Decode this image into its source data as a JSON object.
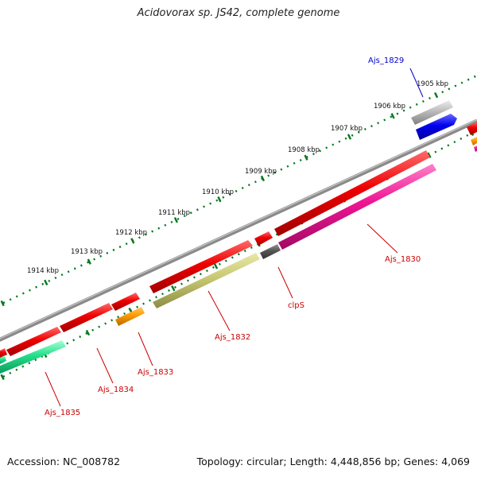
{
  "title": "Acidovorax sp. JS42, complete genome",
  "footer": {
    "accession": "Accession: NC_008782",
    "topology": "Topology: circular; Length: 4,448,856 bp; Genes: 4,069"
  },
  "colors": {
    "forward_gene": "#ee0000",
    "magenta_gene": "#ee1493",
    "olive_gene": "#c8c873",
    "orange_gene": "#ff9900",
    "green_gene": "#22e08a",
    "blue_gene": "#0000ee",
    "gray_gene": "#bbbbbb",
    "dark_gene": "#555555",
    "backbone": "#8a8a8a",
    "ticks": "#00771a",
    "label_red": "#cc0000",
    "label_blue": "#0000cc"
  },
  "ticks": [
    "1905 kbp",
    "1906 kbp",
    "1907 kbp",
    "1908 kbp",
    "1909 kbp",
    "1910 kbp",
    "1911 kbp",
    "1912 kbp",
    "1913 kbp",
    "1914 kbp"
  ],
  "gene_labels": [
    {
      "text": "Ajs_1829",
      "color": "label_blue"
    },
    {
      "text": "Ajs_1830",
      "color": "label_red"
    },
    {
      "text": "clpS",
      "color": "label_red"
    },
    {
      "text": "Ajs_1832",
      "color": "label_red"
    },
    {
      "text": "Ajs_1833",
      "color": "label_red"
    },
    {
      "text": "Ajs_1834",
      "color": "label_red"
    },
    {
      "text": "Ajs_1835",
      "color": "label_red"
    }
  ]
}
